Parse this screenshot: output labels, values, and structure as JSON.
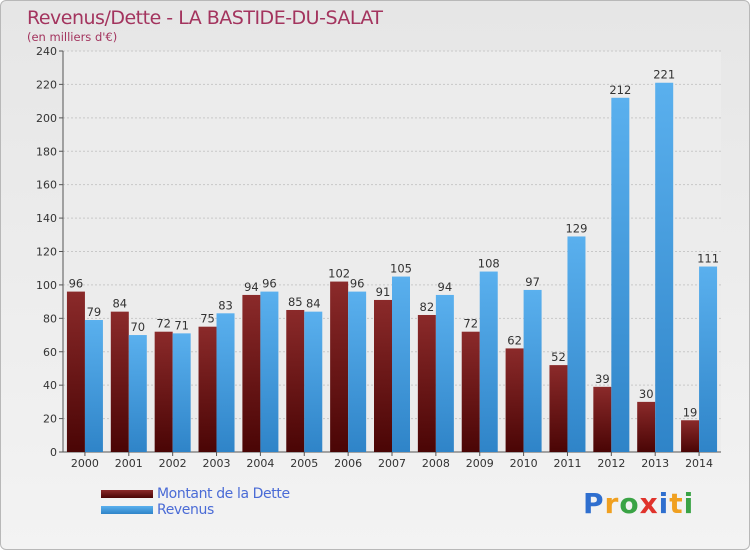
{
  "header": {
    "title": "Revenus/Dette - LA BASTIDE-DU-SALAT",
    "subtitle": "(en milliers d'€)"
  },
  "logo": {
    "text": "Proxiti",
    "letters": [
      {
        "ch": "P",
        "color": "#2f6fcf"
      },
      {
        "ch": "r",
        "color": "#f0a020"
      },
      {
        "ch": "o",
        "color": "#3aa345"
      },
      {
        "ch": "x",
        "color": "#e0332c"
      },
      {
        "ch": "i",
        "color": "#2f6fcf"
      },
      {
        "ch": "t",
        "color": "#f0a020"
      },
      {
        "ch": "i",
        "color": "#3aa345"
      }
    ]
  },
  "chart_data": {
    "type": "bar",
    "title": "Revenus/Dette - LA BASTIDE-DU-SALAT",
    "subtitle": "(en milliers d'€)",
    "categories": [
      "2000",
      "2001",
      "2002",
      "2003",
      "2004",
      "2005",
      "2006",
      "2007",
      "2008",
      "2009",
      "2010",
      "2011",
      "2012",
      "2013",
      "2014"
    ],
    "series": [
      {
        "name": "Montant de la Dette",
        "color": "#7a1515",
        "values": [
          96,
          84,
          72,
          75,
          94,
          85,
          102,
          91,
          82,
          72,
          62,
          52,
          39,
          30,
          19
        ]
      },
      {
        "name": "Revenus",
        "color": "#4aa3e8",
        "values": [
          79,
          70,
          71,
          83,
          96,
          84,
          96,
          105,
          94,
          108,
          97,
          129,
          212,
          221,
          111
        ]
      }
    ],
    "ylim": [
      0,
      240
    ],
    "yticks": [
      0,
      20,
      40,
      60,
      80,
      100,
      120,
      140,
      160,
      180,
      200,
      220,
      240
    ],
    "grid": true,
    "legend": "bottom-left"
  }
}
